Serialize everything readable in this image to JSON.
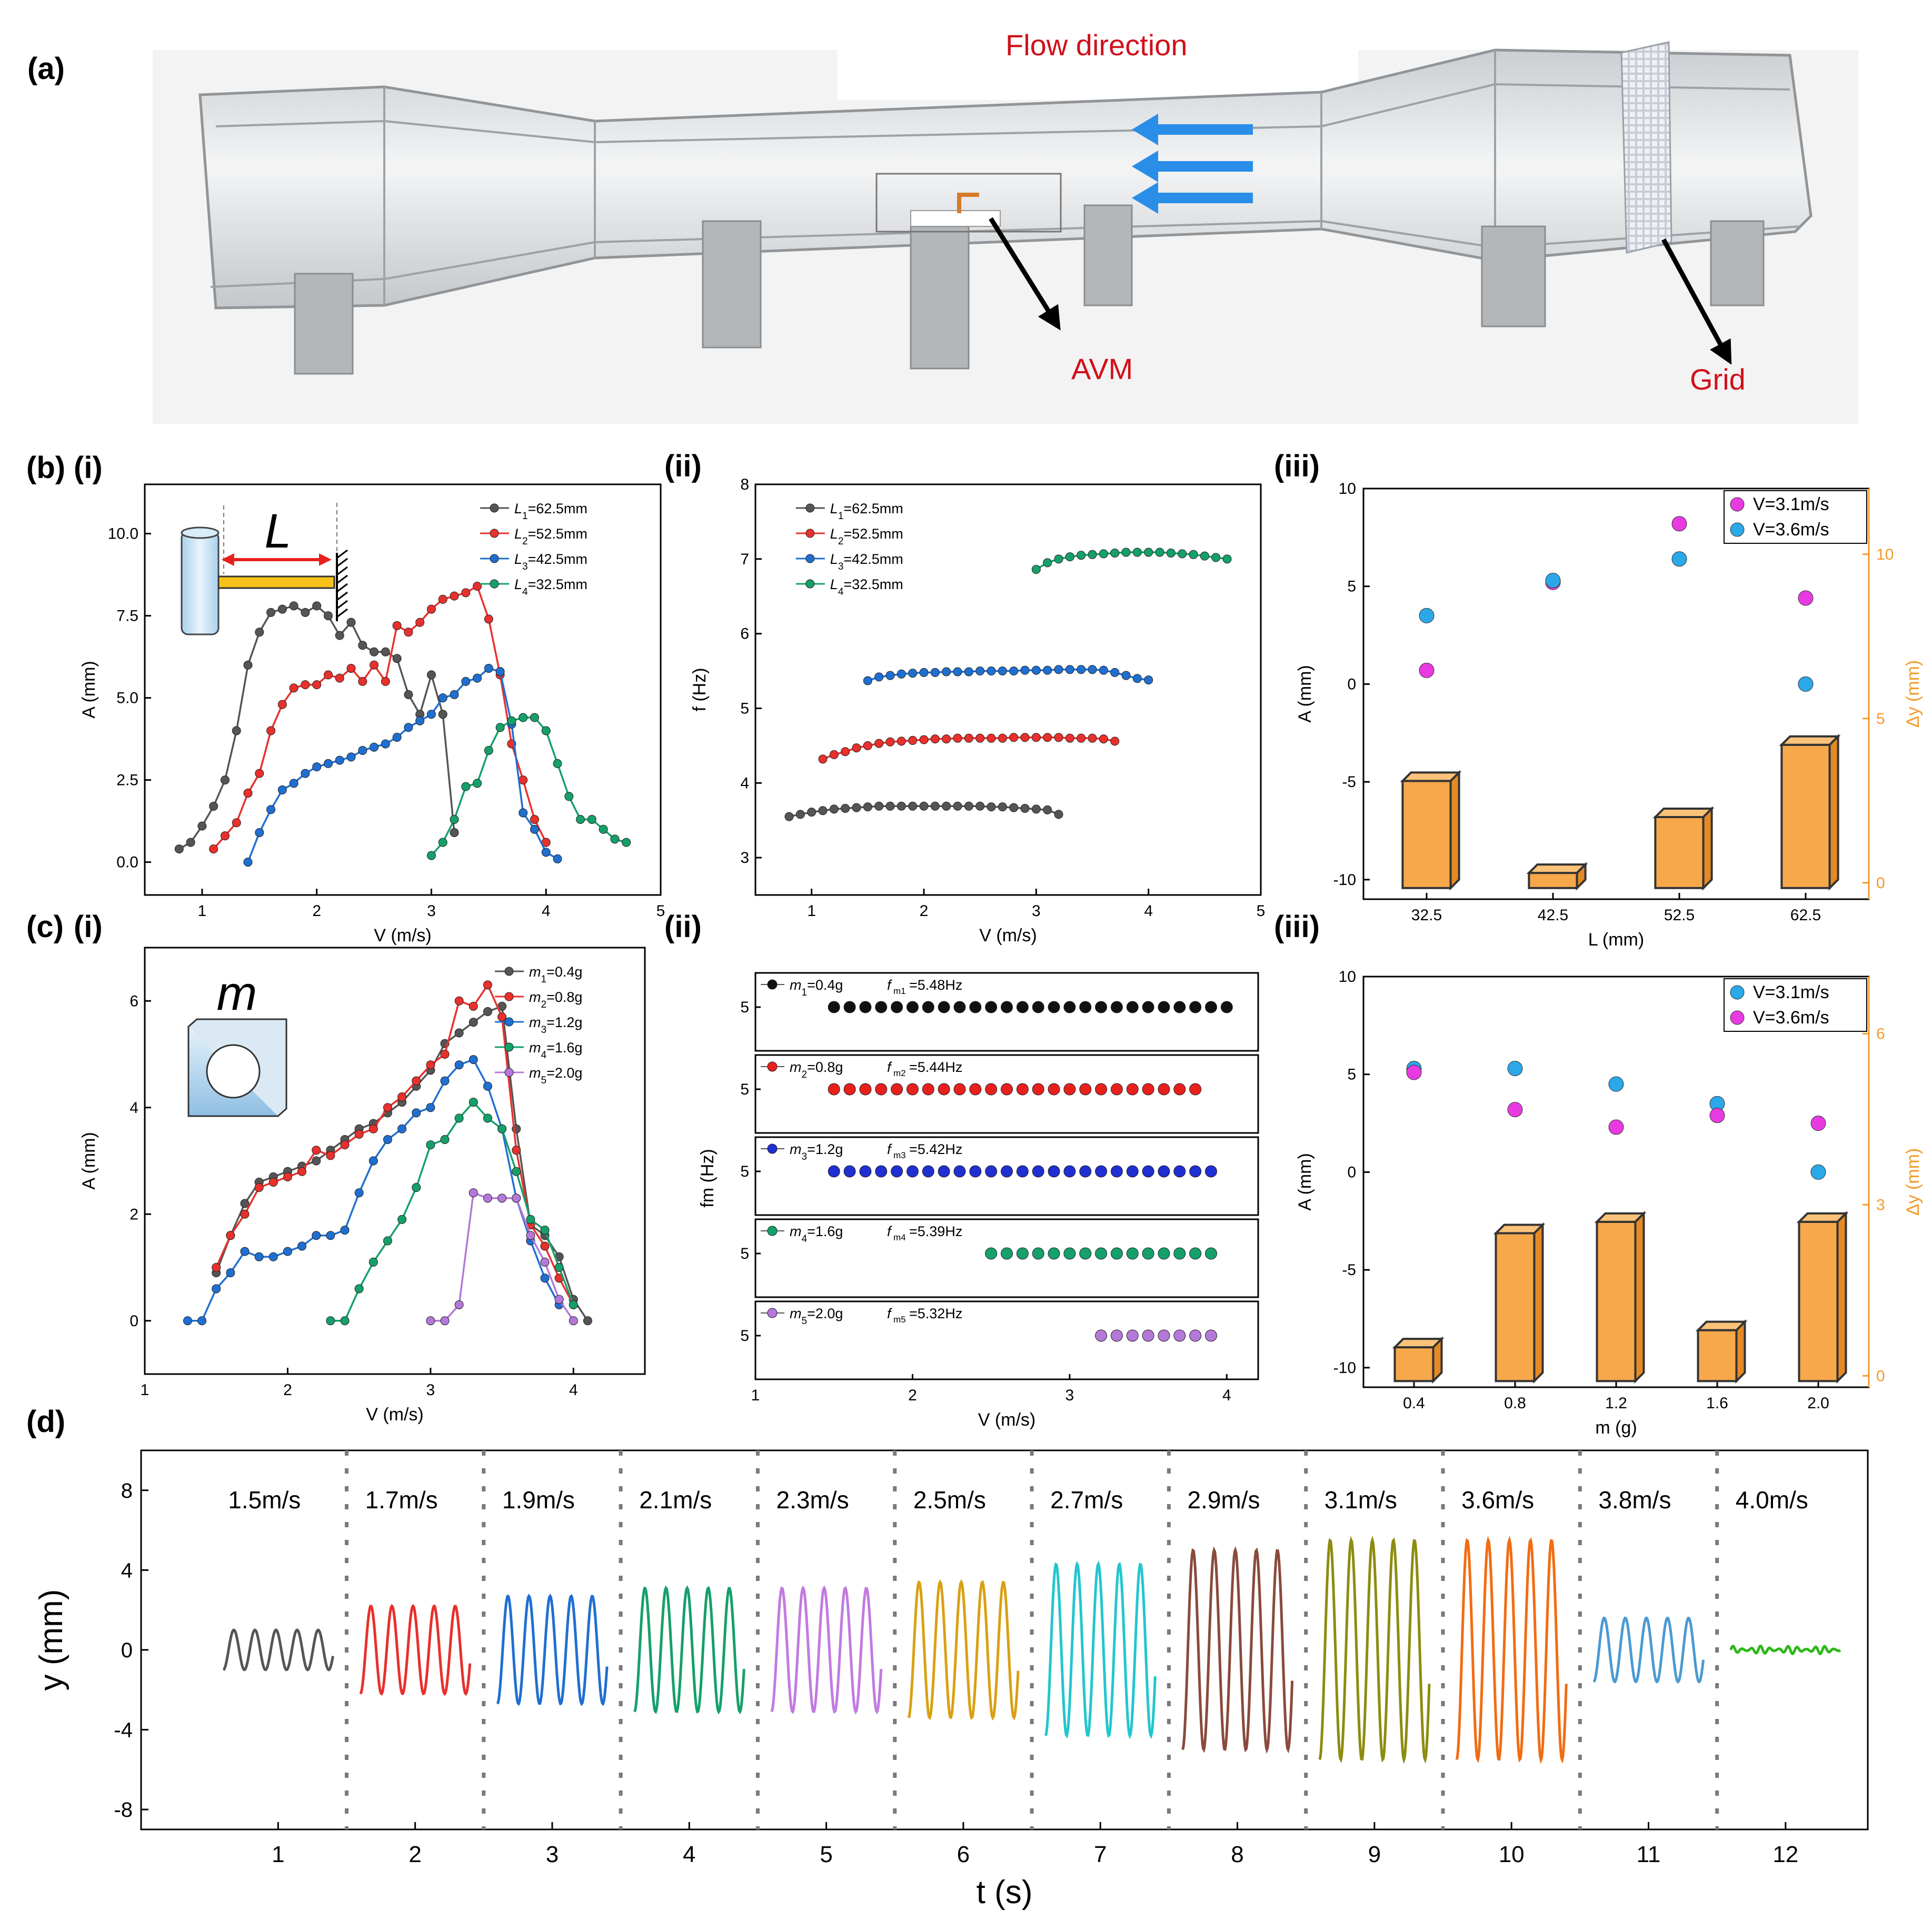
{
  "panel_labels": {
    "a": "(a)",
    "b": "(b)",
    "c": "(c)",
    "d": "(d)",
    "i": "(i)",
    "ii": "(ii)",
    "iii": "(iii)"
  },
  "panel_a": {
    "flow_label": "Flow direction",
    "avm_label": "AVM",
    "grid_label": "Grid",
    "colors": {
      "arrow": "#2a8ee8",
      "label": "#d0101a"
    }
  },
  "chart_data": [
    {
      "id": "b_i",
      "type": "line",
      "xlabel": "V (m/s)",
      "ylabel": "A (mm)",
      "xlim": [
        0.5,
        5.0
      ],
      "ylim": [
        -1.0,
        11.5
      ],
      "xticks": [
        "1",
        "2",
        "3",
        "4",
        "5"
      ],
      "yticks": [
        "0.0",
        "2.5",
        "5.0",
        "7.5",
        "10.0"
      ],
      "inset_label": "L",
      "series": [
        {
          "name": "L1=62.5mm",
          "color": "#555555",
          "x": [
            0.8,
            0.9,
            1.0,
            1.1,
            1.2,
            1.3,
            1.4,
            1.5,
            1.6,
            1.7,
            1.8,
            1.9,
            2.0,
            2.1,
            2.2,
            2.3,
            2.4,
            2.5,
            2.6,
            2.7,
            2.8,
            2.9,
            3.0,
            3.1,
            3.2
          ],
          "y": [
            0.4,
            0.6,
            1.1,
            1.7,
            2.5,
            4.0,
            6.0,
            7.0,
            7.6,
            7.7,
            7.8,
            7.6,
            7.8,
            7.5,
            6.9,
            7.3,
            6.6,
            6.4,
            6.4,
            6.2,
            5.1,
            4.5,
            5.7,
            4.5,
            0.9
          ]
        },
        {
          "name": "L2=52.5mm",
          "color": "#e8302c",
          "x": [
            1.1,
            1.2,
            1.3,
            1.4,
            1.5,
            1.6,
            1.7,
            1.8,
            1.9,
            2.0,
            2.1,
            2.2,
            2.3,
            2.4,
            2.5,
            2.6,
            2.7,
            2.8,
            2.9,
            3.0,
            3.1,
            3.2,
            3.3,
            3.4,
            3.5,
            3.6,
            3.7,
            3.8,
            3.9,
            4.0
          ],
          "y": [
            0.4,
            0.8,
            1.2,
            2.1,
            2.7,
            4.0,
            4.8,
            5.3,
            5.4,
            5.4,
            5.7,
            5.6,
            5.9,
            5.5,
            6.0,
            5.5,
            7.2,
            7.0,
            7.3,
            7.7,
            8.0,
            8.1,
            8.2,
            8.4,
            7.4,
            5.7,
            3.6,
            2.5,
            1.3,
            0.6
          ]
        },
        {
          "name": "L3=42.5mm",
          "color": "#1f6fd1",
          "x": [
            1.4,
            1.5,
            1.6,
            1.7,
            1.8,
            1.9,
            2.0,
            2.1,
            2.2,
            2.3,
            2.4,
            2.5,
            2.6,
            2.7,
            2.8,
            2.9,
            3.0,
            3.1,
            3.2,
            3.3,
            3.4,
            3.5,
            3.6,
            3.7,
            3.8,
            3.9,
            4.0,
            4.1
          ],
          "y": [
            0.0,
            0.9,
            1.6,
            2.2,
            2.4,
            2.7,
            2.9,
            3.0,
            3.1,
            3.2,
            3.4,
            3.5,
            3.6,
            3.8,
            4.1,
            4.3,
            4.5,
            5.0,
            5.1,
            5.5,
            5.6,
            5.9,
            5.8,
            4.2,
            1.5,
            1.0,
            0.3,
            0.1
          ]
        },
        {
          "name": "L4=32.5mm",
          "color": "#15a06a",
          "x": [
            3.0,
            3.1,
            3.2,
            3.3,
            3.4,
            3.5,
            3.6,
            3.7,
            3.8,
            3.9,
            4.0,
            4.1,
            4.2,
            4.3,
            4.4,
            4.5,
            4.6,
            4.7
          ],
          "y": [
            0.2,
            0.6,
            1.3,
            2.3,
            2.4,
            3.4,
            4.1,
            4.3,
            4.4,
            4.4,
            4.0,
            3.0,
            2.0,
            1.3,
            1.3,
            1.0,
            0.7,
            0.6
          ]
        }
      ]
    },
    {
      "id": "b_ii",
      "type": "line",
      "xlabel": "V (m/s)",
      "ylabel": "f (Hz)",
      "xlim": [
        0.5,
        5.0
      ],
      "ylim": [
        2.5,
        8.0
      ],
      "xticks": [
        "1",
        "2",
        "3",
        "4",
        "5"
      ],
      "yticks": [
        "3",
        "4",
        "5",
        "6",
        "7",
        "8"
      ],
      "series": [
        {
          "name": "L1=62.5mm",
          "color": "#555555",
          "x": [
            0.8,
            0.9,
            1.0,
            1.1,
            1.2,
            1.3,
            1.4,
            1.5,
            1.6,
            1.7,
            1.8,
            1.9,
            2.0,
            2.1,
            2.2,
            2.3,
            2.4,
            2.5,
            2.6,
            2.7,
            2.8,
            2.9,
            3.0,
            3.1,
            3.2
          ],
          "y": [
            3.55,
            3.58,
            3.61,
            3.63,
            3.65,
            3.66,
            3.67,
            3.68,
            3.69,
            3.69,
            3.69,
            3.69,
            3.69,
            3.69,
            3.69,
            3.69,
            3.69,
            3.69,
            3.68,
            3.68,
            3.67,
            3.66,
            3.65,
            3.64,
            3.58
          ]
        },
        {
          "name": "L2=52.5mm",
          "color": "#e8302c",
          "x": [
            1.1,
            1.2,
            1.3,
            1.4,
            1.5,
            1.6,
            1.7,
            1.8,
            1.9,
            2.0,
            2.1,
            2.2,
            2.3,
            2.4,
            2.5,
            2.6,
            2.7,
            2.8,
            2.9,
            3.0,
            3.1,
            3.2,
            3.3,
            3.4,
            3.5,
            3.6,
            3.7
          ],
          "y": [
            4.32,
            4.38,
            4.42,
            4.47,
            4.5,
            4.53,
            4.55,
            4.56,
            4.57,
            4.58,
            4.59,
            4.59,
            4.6,
            4.6,
            4.6,
            4.6,
            4.6,
            4.61,
            4.61,
            4.61,
            4.61,
            4.61,
            4.6,
            4.6,
            4.6,
            4.59,
            4.56
          ]
        },
        {
          "name": "L3=42.5mm",
          "color": "#1f6fd1",
          "x": [
            1.5,
            1.6,
            1.7,
            1.8,
            1.9,
            2.0,
            2.1,
            2.2,
            2.3,
            2.4,
            2.5,
            2.6,
            2.7,
            2.8,
            2.9,
            3.0,
            3.1,
            3.2,
            3.3,
            3.4,
            3.5,
            3.6,
            3.7,
            3.8,
            3.9,
            4.0
          ],
          "y": [
            5.37,
            5.42,
            5.44,
            5.46,
            5.47,
            5.48,
            5.48,
            5.49,
            5.49,
            5.49,
            5.5,
            5.5,
            5.5,
            5.5,
            5.51,
            5.51,
            5.51,
            5.52,
            5.52,
            5.52,
            5.52,
            5.51,
            5.48,
            5.44,
            5.4,
            5.38
          ]
        },
        {
          "name": "L4=32.5mm",
          "color": "#15a06a",
          "x": [
            3.0,
            3.1,
            3.2,
            3.3,
            3.4,
            3.5,
            3.6,
            3.7,
            3.8,
            3.9,
            4.0,
            4.1,
            4.2,
            4.3,
            4.4,
            4.5,
            4.6,
            4.7
          ],
          "y": [
            6.86,
            6.95,
            7.0,
            7.03,
            7.05,
            7.06,
            7.07,
            7.08,
            7.09,
            7.09,
            7.09,
            7.09,
            7.08,
            7.07,
            7.06,
            7.04,
            7.02,
            7.0
          ]
        }
      ]
    },
    {
      "id": "b_iii",
      "type": "bar+scatter",
      "xlabel": "L (mm)",
      "ylabel": "A (mm)",
      "y2label": "Δy (mm)",
      "categories": [
        "32.5",
        "42.5",
        "52.5",
        "62.5"
      ],
      "ylim": [
        -11,
        10
      ],
      "y2lim": [
        -0.5,
        12
      ],
      "yticks": [
        "-10",
        "-5",
        "0",
        "5",
        "10"
      ],
      "y2ticks": [
        "0",
        "5",
        "10"
      ],
      "bar_values_dy": [
        3.1,
        0.3,
        2.0,
        4.2
      ],
      "bar_color": "#f7a84a",
      "scatter": [
        {
          "name": "V=3.1m/s",
          "color": "#e83ae0",
          "values": [
            0.7,
            5.2,
            8.2,
            4.4
          ]
        },
        {
          "name": "V=3.6m/s",
          "color": "#2aa8e8",
          "values": [
            3.5,
            5.3,
            6.4,
            0.0
          ]
        }
      ]
    },
    {
      "id": "c_i",
      "type": "line",
      "xlabel": "V (m/s)",
      "ylabel": "A (mm)",
      "xlim": [
        1.0,
        4.5
      ],
      "ylim": [
        -1.0,
        7.0
      ],
      "xticks": [
        "1",
        "2",
        "3",
        "4"
      ],
      "yticks": [
        "0",
        "2",
        "4",
        "6"
      ],
      "inset_label": "m",
      "series": [
        {
          "name": "m1=0.4g",
          "color": "#555555",
          "x": [
            1.5,
            1.6,
            1.7,
            1.8,
            1.9,
            2.0,
            2.1,
            2.2,
            2.3,
            2.4,
            2.5,
            2.6,
            2.7,
            2.8,
            2.9,
            3.0,
            3.1,
            3.2,
            3.3,
            3.4,
            3.5,
            3.6,
            3.7,
            3.8,
            3.9,
            4.0,
            4.1
          ],
          "y": [
            0.9,
            1.6,
            2.2,
            2.6,
            2.7,
            2.8,
            2.9,
            3.0,
            3.2,
            3.4,
            3.6,
            3.7,
            3.9,
            4.1,
            4.4,
            4.7,
            5.2,
            5.4,
            5.6,
            5.8,
            5.9,
            3.6,
            1.8,
            1.6,
            1.2,
            0.4,
            0.0
          ]
        },
        {
          "name": "m2=0.8g",
          "color": "#e8302c",
          "x": [
            1.5,
            1.6,
            1.7,
            1.8,
            1.9,
            2.0,
            2.1,
            2.2,
            2.3,
            2.4,
            2.5,
            2.6,
            2.7,
            2.8,
            2.9,
            3.0,
            3.1,
            3.2,
            3.3,
            3.4,
            3.5,
            3.6,
            3.7,
            3.8,
            3.9,
            4.0
          ],
          "y": [
            1.0,
            1.6,
            2.0,
            2.5,
            2.6,
            2.7,
            2.8,
            3.2,
            3.1,
            3.3,
            3.5,
            3.6,
            4.0,
            4.2,
            4.5,
            4.8,
            5.0,
            6.0,
            5.9,
            6.3,
            5.7,
            3.2,
            1.8,
            1.4,
            0.8,
            0.3
          ]
        },
        {
          "name": "m3=1.2g",
          "color": "#1f6fd1",
          "x": [
            1.3,
            1.4,
            1.5,
            1.6,
            1.7,
            1.8,
            1.9,
            2.0,
            2.1,
            2.2,
            2.3,
            2.4,
            2.5,
            2.6,
            2.7,
            2.8,
            2.9,
            3.0,
            3.1,
            3.2,
            3.3,
            3.4,
            3.5,
            3.6,
            3.7,
            3.8,
            3.9
          ],
          "y": [
            0.0,
            0.0,
            0.6,
            0.9,
            1.3,
            1.2,
            1.2,
            1.3,
            1.4,
            1.6,
            1.6,
            1.7,
            2.4,
            3.0,
            3.4,
            3.6,
            3.9,
            4.0,
            4.5,
            4.8,
            4.9,
            4.4,
            3.6,
            2.3,
            1.5,
            0.8,
            0.3
          ]
        },
        {
          "name": "m4=1.6g",
          "color": "#15a06a",
          "x": [
            2.3,
            2.4,
            2.5,
            2.6,
            2.7,
            2.8,
            2.9,
            3.0,
            3.1,
            3.2,
            3.3,
            3.4,
            3.5,
            3.6,
            3.7,
            3.8,
            3.9,
            4.0
          ],
          "y": [
            0.0,
            0.0,
            0.6,
            1.1,
            1.5,
            1.9,
            2.5,
            3.3,
            3.4,
            3.8,
            4.1,
            3.8,
            3.6,
            2.8,
            1.9,
            1.7,
            1.0,
            0.3
          ]
        },
        {
          "name": "m5=2.0g",
          "color": "#b478d8",
          "x": [
            3.0,
            3.1,
            3.2,
            3.3,
            3.4,
            3.5,
            3.6,
            3.7,
            3.8,
            3.9,
            4.0
          ],
          "y": [
            0.0,
            0.0,
            0.3,
            2.4,
            2.3,
            2.3,
            2.3,
            1.6,
            1.1,
            0.4,
            0.0
          ]
        }
      ]
    },
    {
      "id": "c_ii",
      "type": "scatter-stack",
      "xlabel": "V (m/s)",
      "ylabel": "fm (Hz)",
      "xlim": [
        1.0,
        4.2
      ],
      "xticks": [
        "1",
        "2",
        "3",
        "4"
      ],
      "ytick_label": "5",
      "rows": [
        {
          "name": "m1=0.4g",
          "freq_label": "f",
          "freq_sub": "m1",
          "freq_value": "=5.48Hz",
          "color": "#111111",
          "xstart": 1.5,
          "xend": 4.0
        },
        {
          "name": "m2=0.8g",
          "freq_label": "f",
          "freq_sub": "m2",
          "freq_value": "=5.44Hz",
          "color": "#e8201c",
          "xstart": 1.5,
          "xend": 3.8
        },
        {
          "name": "m3=1.2g",
          "freq_label": "f",
          "freq_sub": "m3",
          "freq_value": "=5.42Hz",
          "color": "#1f2fd1",
          "xstart": 1.5,
          "xend": 3.9
        },
        {
          "name": "m4=1.6g",
          "freq_label": "f",
          "freq_sub": "m4",
          "freq_value": "=5.39Hz",
          "color": "#15a06a",
          "xstart": 2.5,
          "xend": 3.9
        },
        {
          "name": "m5=2.0g",
          "freq_label": "f",
          "freq_sub": "m5",
          "freq_value": "=5.32Hz",
          "color": "#b478d8",
          "xstart": 3.2,
          "xend": 3.9
        }
      ]
    },
    {
      "id": "c_iii",
      "type": "bar+scatter",
      "xlabel": "m (g)",
      "ylabel": "A (mm)",
      "y2label": "Δy (mm)",
      "categories": [
        "0.4",
        "0.8",
        "1.2",
        "1.6",
        "2.0"
      ],
      "ylim": [
        -11,
        10
      ],
      "y2lim": [
        -0.2,
        7
      ],
      "yticks": [
        "-10",
        "-5",
        "0",
        "5",
        "10"
      ],
      "y2ticks": [
        "0",
        "3",
        "6"
      ],
      "bar_values_dy": [
        0.5,
        2.5,
        2.7,
        0.8,
        2.7
      ],
      "bar_color": "#f7a84a",
      "scatter": [
        {
          "name": "V=3.1m/s",
          "color": "#2aa8e8",
          "values": [
            5.3,
            5.3,
            4.5,
            3.5,
            0.0
          ]
        },
        {
          "name": "V=3.6m/s",
          "color": "#e83ae0",
          "values": [
            5.1,
            3.2,
            2.3,
            2.9,
            2.5
          ]
        }
      ]
    },
    {
      "id": "d",
      "type": "line",
      "xlabel": "t (s)",
      "ylabel": "y (mm)",
      "xlim": [
        0,
        12.6
      ],
      "ylim": [
        -9,
        10
      ],
      "xticks": [
        "1",
        "2",
        "3",
        "4",
        "5",
        "6",
        "7",
        "8",
        "9",
        "10",
        "11",
        "12"
      ],
      "yticks": [
        "-8",
        "-4",
        "0",
        "4",
        "8"
      ],
      "segments": [
        {
          "speed": "1.5m/s",
          "amp": 1.0,
          "color": "#555555"
        },
        {
          "speed": "1.7m/s",
          "amp": 2.2,
          "color": "#e8302c"
        },
        {
          "speed": "1.9m/s",
          "amp": 2.7,
          "color": "#1f6fd1"
        },
        {
          "speed": "2.1m/s",
          "amp": 3.1,
          "color": "#15a06a"
        },
        {
          "speed": "2.3m/s",
          "amp": 3.1,
          "color": "#c27ae0"
        },
        {
          "speed": "2.5m/s",
          "amp": 3.4,
          "color": "#d9a012"
        },
        {
          "speed": "2.7m/s",
          "amp": 4.3,
          "color": "#22c6cf"
        },
        {
          "speed": "2.9m/s",
          "amp": 5.0,
          "color": "#8a4a3c"
        },
        {
          "speed": "3.1m/s",
          "amp": 5.5,
          "color": "#8c8c10"
        },
        {
          "speed": "3.6m/s",
          "amp": 5.5,
          "color": "#f26c12"
        },
        {
          "speed": "3.8m/s",
          "amp": 1.6,
          "color": "#4a9ad2"
        },
        {
          "speed": "4.0m/s",
          "amp": 0.2,
          "color": "#2eb71a"
        }
      ]
    }
  ]
}
